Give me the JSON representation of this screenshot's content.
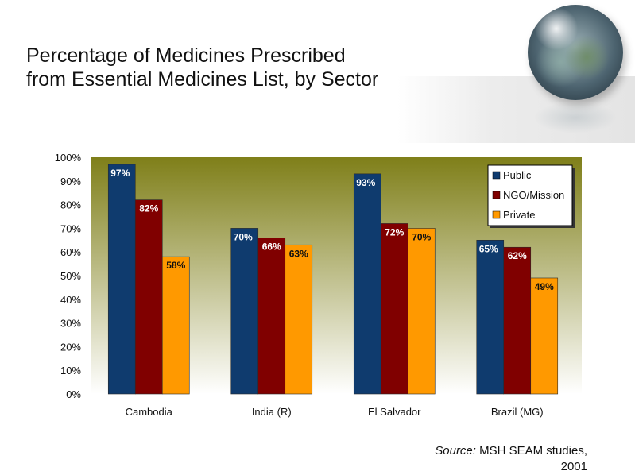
{
  "title_lines": [
    "Percentage of Medicines Prescribed",
    "from Essential Medicines List, by Sector"
  ],
  "source": {
    "label": "Source:",
    "text": "MSH SEAM studies,",
    "year": "2001"
  },
  "colors": {
    "public": "#0f3b6e",
    "ngo": "#800000",
    "private": "#ff9900",
    "plot_bg_top": "#7f7f19",
    "plot_bg_bottom": "#ffffff"
  },
  "chart_data": {
    "type": "bar",
    "categories": [
      "Cambodia",
      "India (R)",
      "El Salvador",
      "Brazil (MG)"
    ],
    "series": [
      {
        "name": "Public",
        "values": [
          97,
          70,
          93,
          65
        ],
        "labels": [
          "97%",
          "70%",
          "93%",
          "65%"
        ]
      },
      {
        "name": "NGO/Mission",
        "values": [
          82,
          66,
          72,
          62
        ],
        "labels": [
          "82%",
          "66%",
          "72%",
          "62%"
        ]
      },
      {
        "name": "Private",
        "values": [
          58,
          63,
          70,
          49
        ],
        "labels": [
          "58%",
          "63%",
          "70%",
          "49%"
        ]
      }
    ],
    "ylim": [
      0,
      100
    ],
    "yticks": [
      "0%",
      "10%",
      "20%",
      "30%",
      "40%",
      "50%",
      "60%",
      "70%",
      "80%",
      "90%",
      "100%"
    ],
    "legend_position": "top-right",
    "grid": false
  }
}
